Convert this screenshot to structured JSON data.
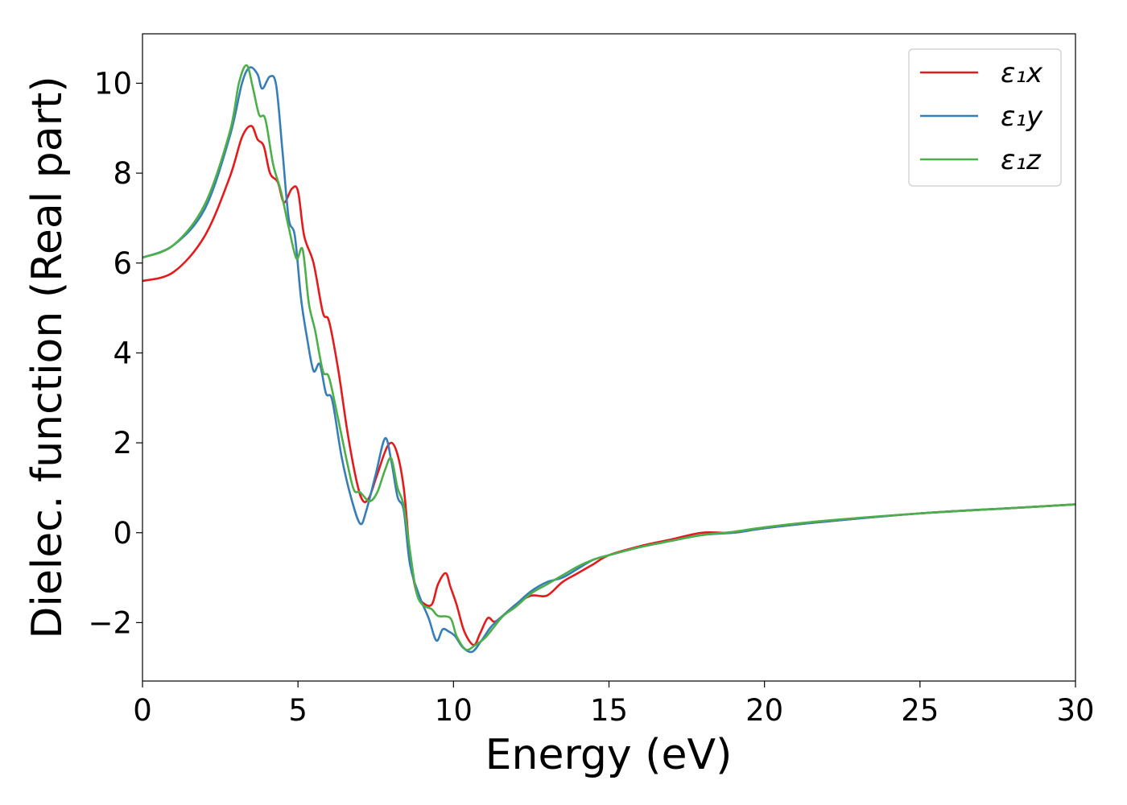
{
  "chart_data": {
    "type": "line",
    "xlabel": "Energy (eV)",
    "ylabel": "Dielec. function (Real part)",
    "xlim": [
      0,
      30
    ],
    "ylim": [
      -3.3,
      11.1
    ],
    "xticks": [
      0,
      5,
      10,
      15,
      20,
      25,
      30
    ],
    "yticks": [
      -2,
      0,
      2,
      4,
      6,
      8,
      10
    ],
    "xtick_labels": [
      "0",
      "5",
      "10",
      "15",
      "20",
      "25",
      "30"
    ],
    "ytick_labels": [
      "−2",
      "0",
      "2",
      "4",
      "6",
      "8",
      "10"
    ],
    "grid": false,
    "legend_position": "top-right",
    "series": [
      {
        "name": "ε₁x",
        "color": "#e41a1c",
        "points": [
          [
            0,
            5.6
          ],
          [
            1,
            5.8
          ],
          [
            2,
            6.6
          ],
          [
            2.8,
            7.9
          ],
          [
            3.2,
            8.8
          ],
          [
            3.5,
            9.05
          ],
          [
            3.7,
            8.75
          ],
          [
            3.9,
            8.6
          ],
          [
            4.1,
            8.0
          ],
          [
            4.35,
            7.8
          ],
          [
            4.55,
            7.35
          ],
          [
            4.8,
            7.65
          ],
          [
            5.0,
            7.6
          ],
          [
            5.2,
            6.6
          ],
          [
            5.5,
            6.0
          ],
          [
            5.8,
            4.9
          ],
          [
            6.0,
            4.7
          ],
          [
            6.3,
            3.6
          ],
          [
            6.6,
            2.2
          ],
          [
            6.9,
            1.1
          ],
          [
            7.1,
            0.7
          ],
          [
            7.3,
            0.8
          ],
          [
            7.55,
            1.3
          ],
          [
            7.9,
            1.95
          ],
          [
            8.15,
            1.85
          ],
          [
            8.4,
            1.0
          ],
          [
            8.6,
            -0.5
          ],
          [
            8.8,
            -1.3
          ],
          [
            9.0,
            -1.55
          ],
          [
            9.3,
            -1.6
          ],
          [
            9.5,
            -1.15
          ],
          [
            9.75,
            -0.9
          ],
          [
            9.9,
            -1.2
          ],
          [
            10.1,
            -1.6
          ],
          [
            10.35,
            -2.2
          ],
          [
            10.65,
            -2.5
          ],
          [
            10.85,
            -2.25
          ],
          [
            11.1,
            -1.9
          ],
          [
            11.3,
            -1.98
          ],
          [
            11.5,
            -1.9
          ],
          [
            12.0,
            -1.6
          ],
          [
            12.5,
            -1.4
          ],
          [
            13.0,
            -1.4
          ],
          [
            13.5,
            -1.1
          ],
          [
            14.0,
            -0.9
          ],
          [
            14.5,
            -0.7
          ],
          [
            15.0,
            -0.5
          ],
          [
            16.0,
            -0.3
          ],
          [
            17.0,
            -0.15
          ],
          [
            18.0,
            0.0
          ],
          [
            19.0,
            0.0
          ],
          [
            20.0,
            0.1
          ],
          [
            22.0,
            0.25
          ],
          [
            25.0,
            0.43
          ],
          [
            28.0,
            0.55
          ],
          [
            30.0,
            0.63
          ]
        ]
      },
      {
        "name": "ε₁y",
        "color": "#377eb8",
        "points": [
          [
            0,
            6.12
          ],
          [
            1,
            6.4
          ],
          [
            2,
            7.2
          ],
          [
            2.8,
            8.8
          ],
          [
            3.2,
            10.0
          ],
          [
            3.45,
            10.35
          ],
          [
            3.7,
            10.2
          ],
          [
            3.85,
            9.88
          ],
          [
            4.1,
            10.15
          ],
          [
            4.3,
            9.95
          ],
          [
            4.5,
            8.5
          ],
          [
            4.7,
            7.0
          ],
          [
            4.9,
            6.6
          ],
          [
            5.1,
            5.2
          ],
          [
            5.3,
            4.3
          ],
          [
            5.5,
            3.6
          ],
          [
            5.7,
            3.75
          ],
          [
            5.9,
            3.1
          ],
          [
            6.1,
            2.95
          ],
          [
            6.4,
            1.7
          ],
          [
            6.7,
            0.8
          ],
          [
            7.0,
            0.2
          ],
          [
            7.2,
            0.5
          ],
          [
            7.5,
            1.3
          ],
          [
            7.8,
            2.1
          ],
          [
            8.0,
            1.6
          ],
          [
            8.2,
            0.8
          ],
          [
            8.4,
            0.5
          ],
          [
            8.6,
            -0.7
          ],
          [
            8.9,
            -1.4
          ],
          [
            9.2,
            -1.9
          ],
          [
            9.45,
            -2.4
          ],
          [
            9.65,
            -2.15
          ],
          [
            9.85,
            -2.2
          ],
          [
            10.05,
            -2.3
          ],
          [
            10.3,
            -2.55
          ],
          [
            10.6,
            -2.65
          ],
          [
            10.9,
            -2.4
          ],
          [
            11.2,
            -2.1
          ],
          [
            11.5,
            -1.9
          ],
          [
            12.0,
            -1.6
          ],
          [
            12.5,
            -1.3
          ],
          [
            13.0,
            -1.1
          ],
          [
            13.5,
            -1.0
          ],
          [
            14.0,
            -0.8
          ],
          [
            14.5,
            -0.6
          ],
          [
            15.0,
            -0.5
          ],
          [
            16.0,
            -0.32
          ],
          [
            17.0,
            -0.18
          ],
          [
            18.0,
            -0.05
          ],
          [
            19.0,
            0.0
          ],
          [
            20.0,
            0.1
          ],
          [
            22.0,
            0.25
          ],
          [
            25.0,
            0.43
          ],
          [
            28.0,
            0.55
          ],
          [
            30.0,
            0.63
          ]
        ]
      },
      {
        "name": "ε₁z",
        "color": "#4daf4a",
        "points": [
          [
            0,
            6.12
          ],
          [
            1,
            6.4
          ],
          [
            2,
            7.3
          ],
          [
            2.8,
            8.9
          ],
          [
            3.1,
            10.0
          ],
          [
            3.35,
            10.4
          ],
          [
            3.55,
            9.9
          ],
          [
            3.75,
            9.3
          ],
          [
            3.95,
            9.2
          ],
          [
            4.2,
            8.2
          ],
          [
            4.45,
            7.6
          ],
          [
            4.7,
            6.8
          ],
          [
            4.95,
            6.1
          ],
          [
            5.15,
            6.3
          ],
          [
            5.35,
            5.1
          ],
          [
            5.55,
            4.5
          ],
          [
            5.8,
            3.6
          ],
          [
            6.0,
            3.45
          ],
          [
            6.3,
            2.5
          ],
          [
            6.6,
            1.5
          ],
          [
            6.8,
            0.95
          ],
          [
            7.0,
            0.9
          ],
          [
            7.3,
            0.7
          ],
          [
            7.55,
            0.9
          ],
          [
            7.8,
            1.4
          ],
          [
            8.0,
            1.65
          ],
          [
            8.2,
            1.0
          ],
          [
            8.4,
            0.6
          ],
          [
            8.6,
            -0.4
          ],
          [
            8.8,
            -1.3
          ],
          [
            9.0,
            -1.6
          ],
          [
            9.3,
            -1.7
          ],
          [
            9.5,
            -1.85
          ],
          [
            9.9,
            -1.9
          ],
          [
            10.1,
            -2.3
          ],
          [
            10.4,
            -2.6
          ],
          [
            10.7,
            -2.5
          ],
          [
            11.0,
            -2.35
          ],
          [
            11.3,
            -2.1
          ],
          [
            11.6,
            -1.85
          ],
          [
            12.0,
            -1.65
          ],
          [
            12.5,
            -1.35
          ],
          [
            13.0,
            -1.15
          ],
          [
            13.5,
            -0.95
          ],
          [
            14.0,
            -0.75
          ],
          [
            14.5,
            -0.6
          ],
          [
            15.0,
            -0.5
          ],
          [
            16.0,
            -0.32
          ],
          [
            17.0,
            -0.18
          ],
          [
            18.0,
            -0.05
          ],
          [
            19.0,
            0.02
          ],
          [
            20.0,
            0.12
          ],
          [
            22.0,
            0.27
          ],
          [
            25.0,
            0.43
          ],
          [
            28.0,
            0.55
          ],
          [
            30.0,
            0.63
          ]
        ]
      }
    ]
  }
}
